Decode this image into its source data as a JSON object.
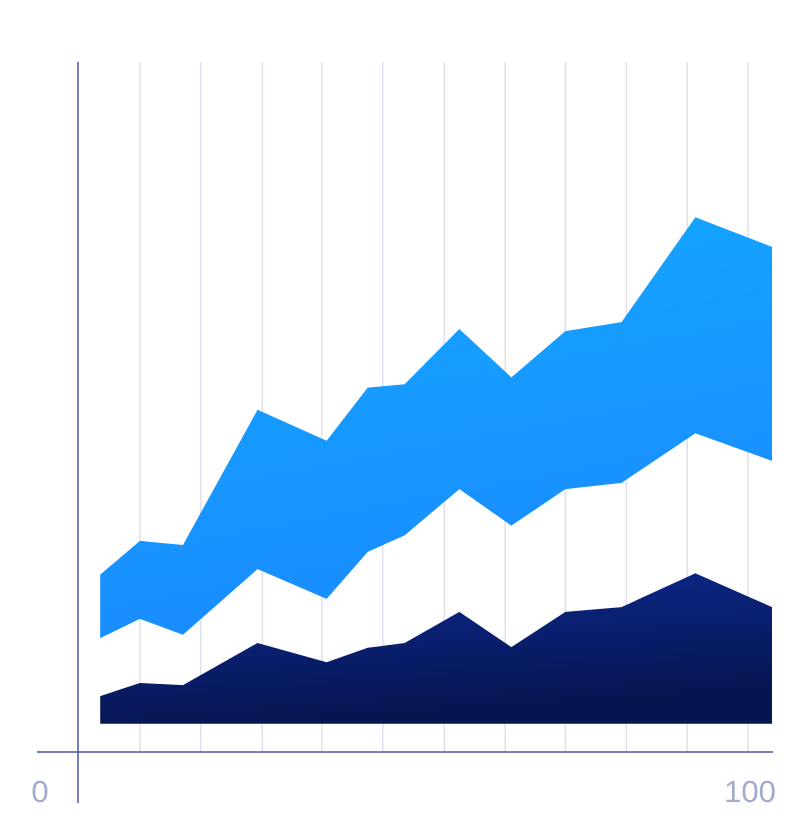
{
  "chart_data": {
    "type": "area",
    "x": [
      8.8,
      14.6,
      20.9,
      31.8,
      41.9,
      47.9,
      53.3,
      61.3,
      68.9,
      76.8,
      85.0,
      95.8,
      107
    ],
    "xlim": [
      0,
      107
    ],
    "ylim": [
      0,
      100
    ],
    "xticks": [
      0,
      100
    ],
    "xgrid": [
      14.6,
      23.5,
      32.5,
      41.2,
      50.1,
      59.1,
      68.0,
      76.8,
      85.7,
      94.6,
      103.5
    ],
    "grid": true,
    "series": [
      {
        "gradient": [
          "#0d2a92",
          "#061550"
        ],
        "values": [
          8.1,
          10.0,
          9.7,
          15.8,
          13.0,
          15.1,
          15.8,
          20.3,
          15.2,
          20.3,
          21.0,
          25.9,
          21.0
        ],
        "lower": [
          4.1,
          4.1,
          4.1,
          4.1,
          4.1,
          4.1,
          4.1,
          4.1,
          4.1,
          4.1,
          4.1,
          4.1,
          4.1
        ]
      },
      {
        "gradient": [
          "#12aaff",
          "#1a8bff"
        ],
        "values": [
          25.7,
          30.6,
          30.0,
          49.6,
          45.1,
          52.8,
          53.3,
          61.3,
          54.3,
          61.0,
          62.3,
          77.5,
          73.2
        ],
        "lower": [
          16.5,
          19.3,
          17.0,
          26.5,
          22.2,
          29.0,
          31.4,
          38.1,
          32.8,
          38.1,
          39.0,
          46.2,
          42.2
        ]
      }
    ]
  }
}
